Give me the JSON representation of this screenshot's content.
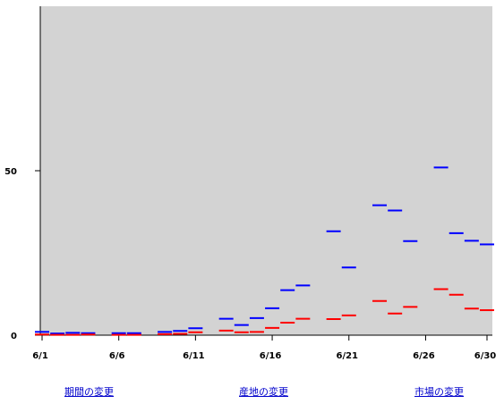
{
  "colors": {
    "plot_background": "#d3d3d3",
    "series_blue": "#0000ff",
    "series_red": "#ff0000"
  },
  "chart_data": {
    "type": "scatter",
    "title": "",
    "xlabel": "",
    "ylabel": "",
    "x_tick_labels": [
      "6/1",
      "6/6",
      "6/11",
      "6/16",
      "6/21",
      "6/26",
      "6/30"
    ],
    "x_tick_days": [
      1,
      6,
      11,
      16,
      21,
      26,
      30
    ],
    "xlim": [
      1,
      30
    ],
    "y_tick_labels": [
      "0",
      "50"
    ],
    "y_tick_values": [
      0,
      50
    ],
    "ylim": [
      0,
      100
    ],
    "grid": false,
    "legend": "none",
    "series": [
      {
        "color": "#0000ff",
        "points": [
          {
            "x": 1,
            "y": 1.0
          },
          {
            "x": 2,
            "y": 0.5
          },
          {
            "x": 3,
            "y": 0.7
          },
          {
            "x": 4,
            "y": 0.6
          },
          {
            "x": 6,
            "y": 0.6
          },
          {
            "x": 7,
            "y": 0.6
          },
          {
            "x": 9,
            "y": 1.0
          },
          {
            "x": 10,
            "y": 1.3
          },
          {
            "x": 11,
            "y": 2.1
          },
          {
            "x": 13,
            "y": 5.0
          },
          {
            "x": 14,
            "y": 3.1
          },
          {
            "x": 15,
            "y": 5.2
          },
          {
            "x": 16,
            "y": 8.2
          },
          {
            "x": 17,
            "y": 13.7
          },
          {
            "x": 18,
            "y": 15.1
          },
          {
            "x": 20,
            "y": 31.6
          },
          {
            "x": 21,
            "y": 20.6
          },
          {
            "x": 23,
            "y": 39.5
          },
          {
            "x": 24,
            "y": 37.9
          },
          {
            "x": 25,
            "y": 28.6
          },
          {
            "x": 27,
            "y": 51.0
          },
          {
            "x": 28,
            "y": 31.0
          },
          {
            "x": 29,
            "y": 28.7
          },
          {
            "x": 30,
            "y": 27.6
          }
        ]
      },
      {
        "color": "#ff0000",
        "points": [
          {
            "x": 1,
            "y": 0.2
          },
          {
            "x": 2,
            "y": 0.1
          },
          {
            "x": 3,
            "y": 0.1
          },
          {
            "x": 4,
            "y": 0.2
          },
          {
            "x": 6,
            "y": 0.1
          },
          {
            "x": 7,
            "y": 0.1
          },
          {
            "x": 9,
            "y": 0.3
          },
          {
            "x": 10,
            "y": 0.4
          },
          {
            "x": 11,
            "y": 0.9
          },
          {
            "x": 13,
            "y": 1.4
          },
          {
            "x": 14,
            "y": 0.9
          },
          {
            "x": 15,
            "y": 1.0
          },
          {
            "x": 16,
            "y": 2.2
          },
          {
            "x": 17,
            "y": 3.8
          },
          {
            "x": 18,
            "y": 5.0
          },
          {
            "x": 20,
            "y": 4.9
          },
          {
            "x": 21,
            "y": 6.0
          },
          {
            "x": 23,
            "y": 10.4
          },
          {
            "x": 24,
            "y": 6.6
          },
          {
            "x": 25,
            "y": 8.6
          },
          {
            "x": 27,
            "y": 14.0
          },
          {
            "x": 28,
            "y": 12.3
          },
          {
            "x": 29,
            "y": 8.1
          },
          {
            "x": 30,
            "y": 7.6
          }
        ]
      }
    ]
  },
  "footer_links": {
    "period": "期間の変更",
    "origin": "産地の変更",
    "market": "市場の変更"
  }
}
